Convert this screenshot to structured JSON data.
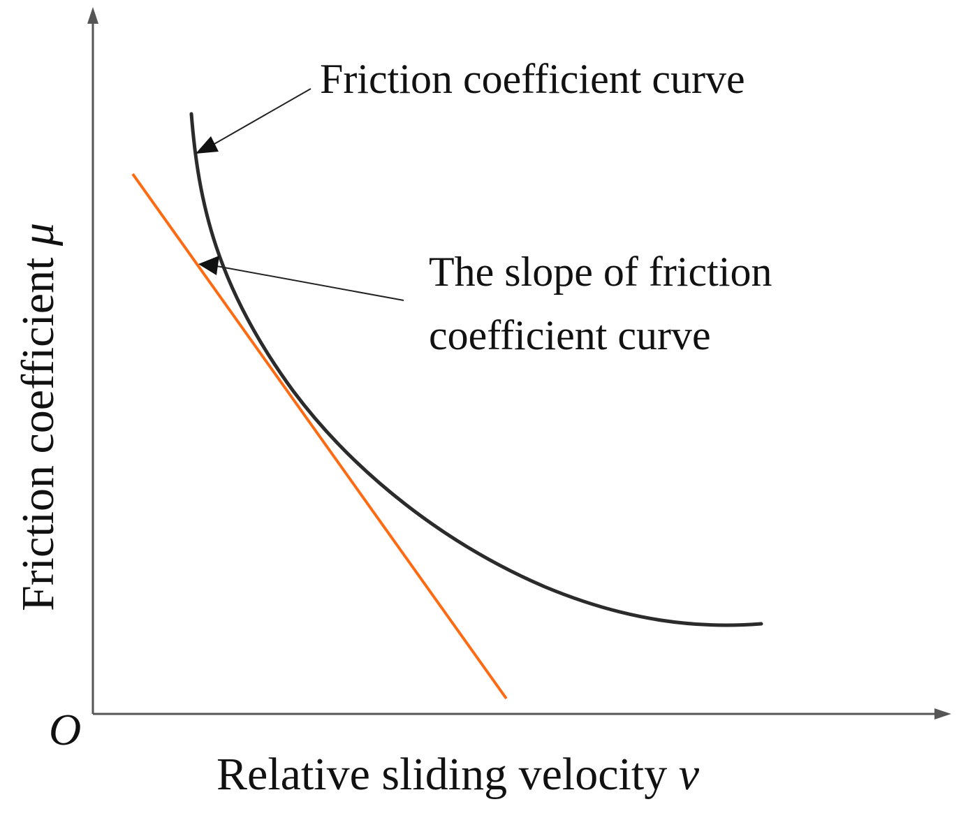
{
  "diagram": {
    "origin_label": "O",
    "x_axis": {
      "label": "Relative sliding velocity ",
      "symbol": "v"
    },
    "y_axis": {
      "label": "Friction coefficient ",
      "symbol": "μ"
    },
    "curve": {
      "label": "Friction coefficient curve",
      "color": "#2b2b2b"
    },
    "tangent": {
      "label_line1": "The slope of friction",
      "label_line2": "coefficient curve",
      "color": "#ff6a13"
    },
    "axis_color": "#555555",
    "annotation_color": "#222222"
  }
}
